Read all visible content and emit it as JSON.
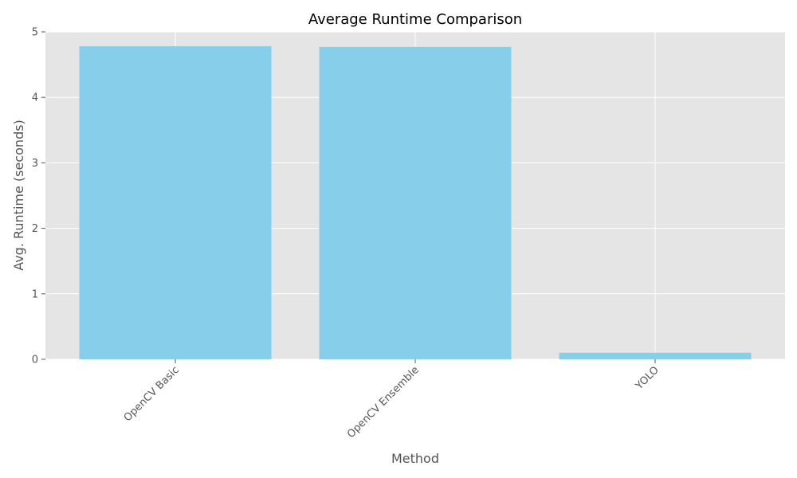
{
  "chart_data": {
    "type": "bar",
    "title": "Average Runtime Comparison",
    "xlabel": "Method",
    "ylabel": "Avg. Runtime (seconds)",
    "categories": [
      "OpenCV Basic",
      "OpenCV Ensemble",
      "YOLO"
    ],
    "values": [
      4.78,
      4.77,
      0.1
    ],
    "ylim": [
      0,
      5
    ],
    "yticks": [
      0,
      1,
      2,
      3,
      4,
      5
    ],
    "grid": true,
    "xtick_rotation": 45,
    "colors": {
      "bar": "#87CEEB",
      "plot_background": "#E5E5E5",
      "grid": "#FFFFFF",
      "text": "#555555",
      "title": "#000000"
    }
  }
}
